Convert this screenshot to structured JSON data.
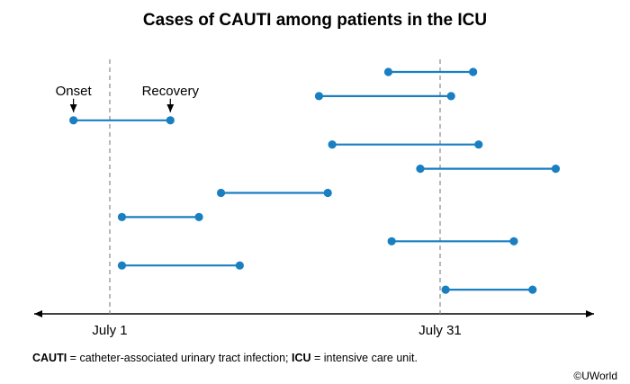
{
  "chart_data": {
    "type": "timeline",
    "title": "Cases of CAUTI among patients in the ICU",
    "x_ticks": [
      {
        "label": "July 1",
        "day": 1
      },
      {
        "label": "July 31",
        "day": 31
      }
    ],
    "annotations": {
      "onset": "Onset",
      "recovery": "Recovery"
    },
    "grid_lines_at_ticks": true,
    "intervals": [
      {
        "onset": 26.3,
        "recovery": 34.0
      },
      {
        "onset": 20.0,
        "recovery": 32.0
      },
      {
        "onset": -2.3,
        "recovery": 6.5
      },
      {
        "onset": 21.2,
        "recovery": 34.5
      },
      {
        "onset": 29.2,
        "recovery": 41.5
      },
      {
        "onset": 11.1,
        "recovery": 20.8
      },
      {
        "onset": 2.1,
        "recovery": 9.1
      },
      {
        "onset": 26.6,
        "recovery": 37.7
      },
      {
        "onset": 2.1,
        "recovery": 12.8
      },
      {
        "onset": 31.5,
        "recovery": 39.4
      }
    ],
    "colors": {
      "line": "#1a7fc1",
      "axis": "#000000",
      "gridline": "#888888"
    }
  },
  "footnote": {
    "term1": "CAUTI",
    "def1": " = catheter-associated urinary tract infection; ",
    "term2": "ICU",
    "def2": " = intensive care unit."
  },
  "copyright": "©UWorld"
}
